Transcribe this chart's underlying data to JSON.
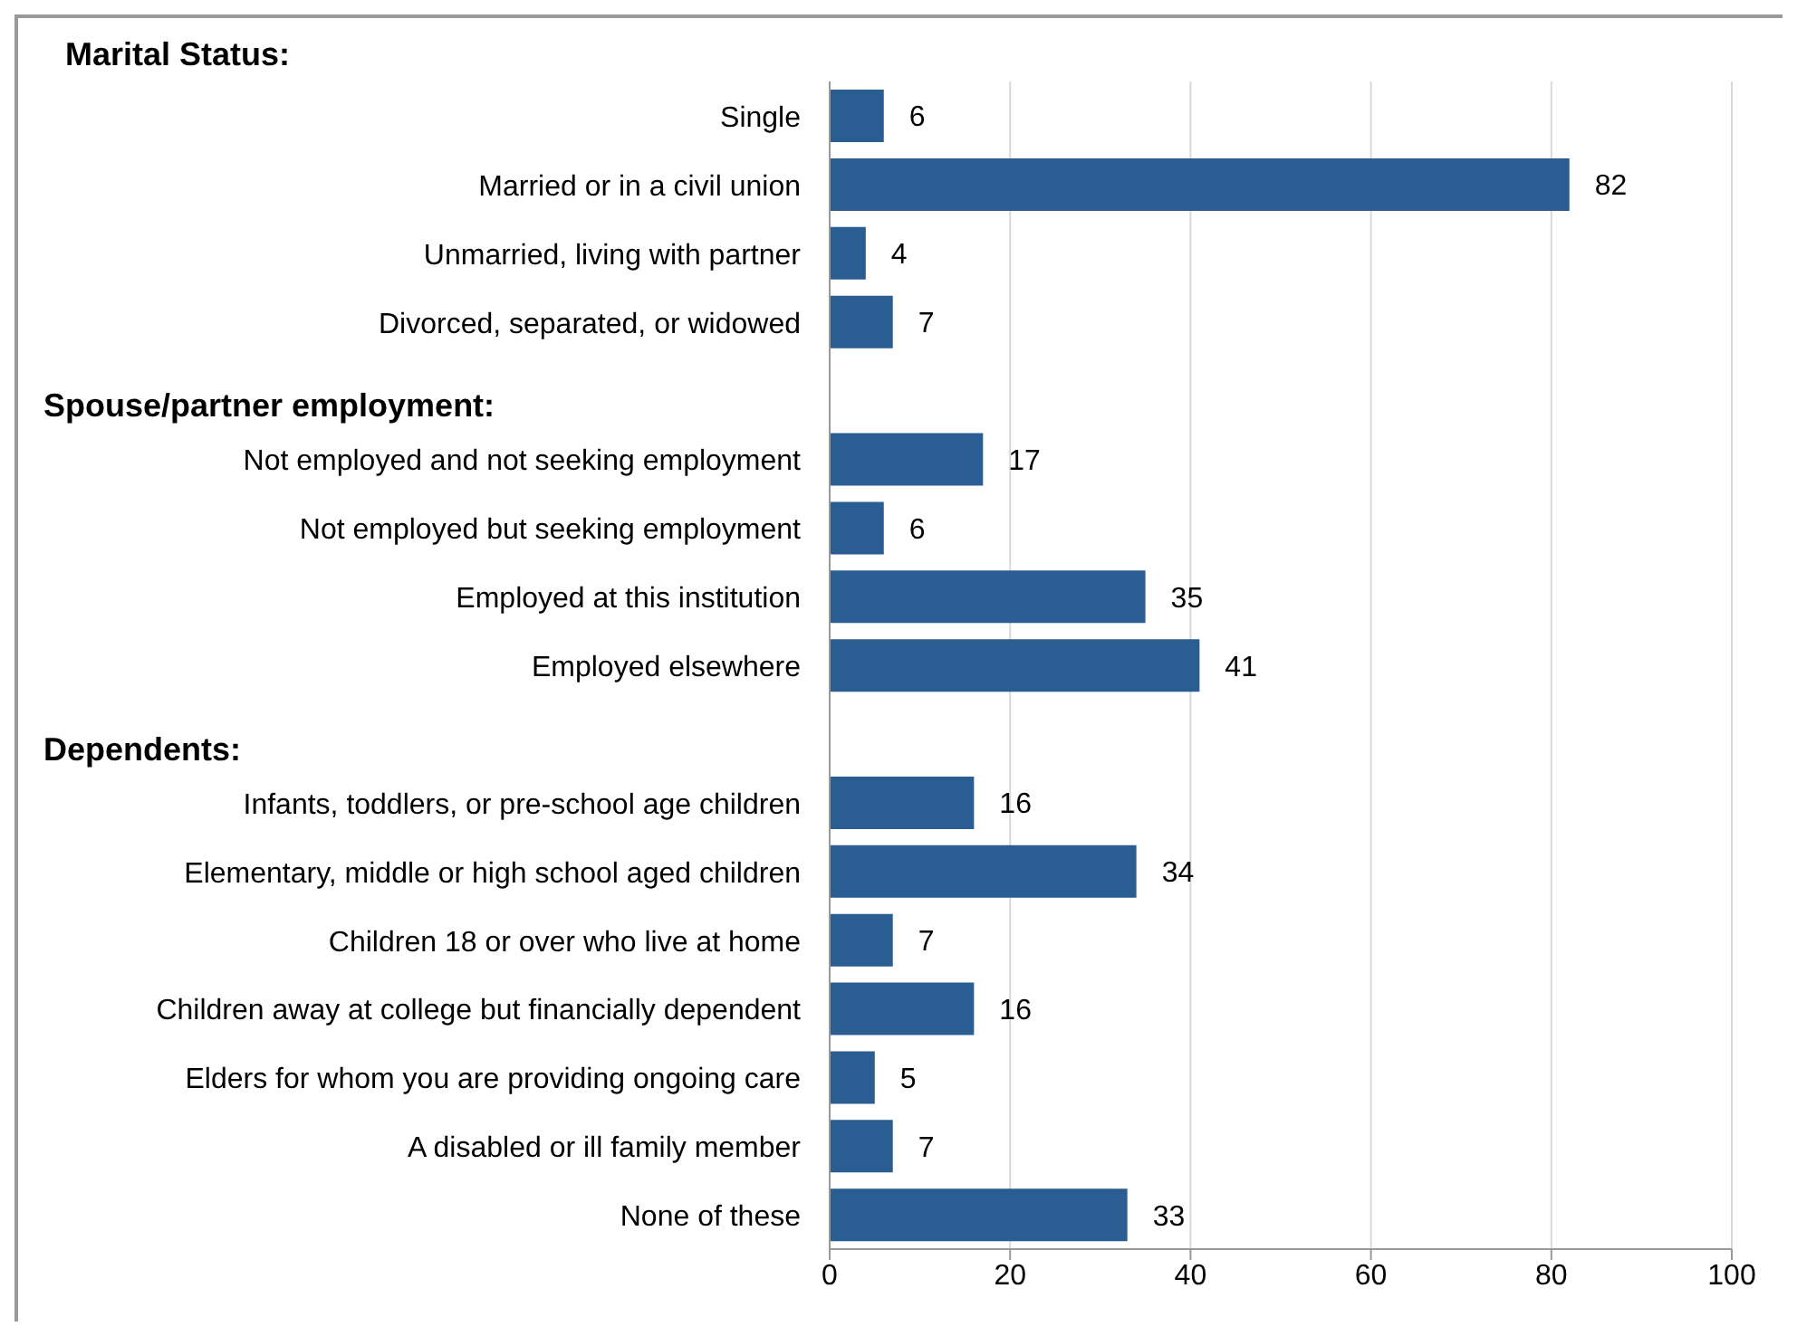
{
  "chart_data": {
    "type": "bar",
    "orientation": "horizontal",
    "categories": [
      "Single",
      "Married or in a civil union",
      "Unmarried, living with partner",
      "Divorced, separated, or widowed",
      null,
      "Not employed and not seeking employment",
      "Not employed but seeking employment",
      "Employed at this institution",
      "Employed elsewhere",
      null,
      "Infants, toddlers, or pre-school age children",
      "Elementary, middle or high school aged children",
      "Children 18 or over who live at home",
      "Children away at college but financially dependent",
      "Elders for whom you are providing ongoing care",
      "A disabled or ill family member",
      "None of these"
    ],
    "values": [
      6,
      82,
      4,
      7,
      null,
      17,
      6,
      35,
      41,
      null,
      16,
      34,
      7,
      16,
      5,
      7,
      33
    ],
    "color": "#2a5d92",
    "xlim": [
      0,
      100
    ],
    "xticks": [
      0,
      20,
      40,
      60,
      80,
      100
    ],
    "grid": "x",
    "data_labels": true,
    "annotations": [
      "Marital Status:",
      "Spouse/partner employment:",
      "Dependents:"
    ]
  }
}
